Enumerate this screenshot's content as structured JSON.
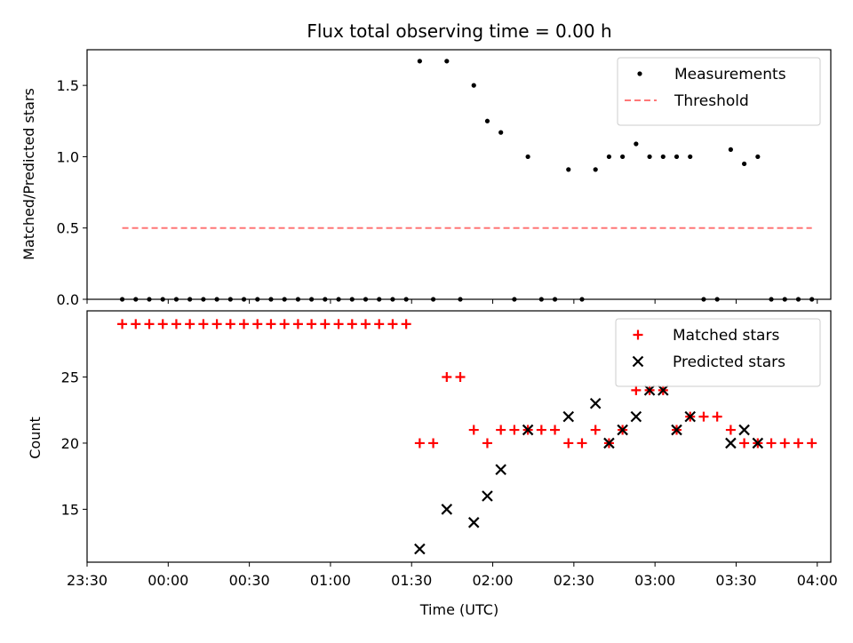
{
  "chart_data": [
    {
      "type": "scatter",
      "title": "Flux total observing time = 0.00 h",
      "ylabel": "Matched/Predicted stars",
      "xlabel": "",
      "xlim": [
        "23:30",
        "04:05"
      ],
      "ylim": [
        0,
        1.75
      ],
      "xticks": [
        "23:30",
        "00:00",
        "00:30",
        "01:00",
        "01:30",
        "02:00",
        "02:30",
        "03:00",
        "03:30",
        "04:00"
      ],
      "xtick_labels_visible": false,
      "yticks": [
        0.0,
        0.5,
        1.0,
        1.5
      ],
      "ytick_labels": [
        "0.0",
        "0.5",
        "1.0",
        "1.5"
      ],
      "legend": {
        "placement": "upper right",
        "entries": [
          "Measurements",
          "Threshold"
        ]
      },
      "series": [
        {
          "name": "Measurements",
          "marker": "dot",
          "color": "#000000",
          "points": [
            [
              "23:43",
              0
            ],
            [
              "23:48",
              0
            ],
            [
              "23:53",
              0
            ],
            [
              "23:58",
              0
            ],
            [
              "00:03",
              0
            ],
            [
              "00:08",
              0
            ],
            [
              "00:13",
              0
            ],
            [
              "00:18",
              0
            ],
            [
              "00:23",
              0
            ],
            [
              "00:28",
              0
            ],
            [
              "00:33",
              0
            ],
            [
              "00:38",
              0
            ],
            [
              "00:43",
              0
            ],
            [
              "00:48",
              0
            ],
            [
              "00:53",
              0
            ],
            [
              "00:58",
              0
            ],
            [
              "01:03",
              0
            ],
            [
              "01:08",
              0
            ],
            [
              "01:13",
              0
            ],
            [
              "01:18",
              0
            ],
            [
              "01:23",
              0
            ],
            [
              "01:28",
              0
            ],
            [
              "01:33",
              1.67
            ],
            [
              "01:38",
              0
            ],
            [
              "01:43",
              1.67
            ],
            [
              "01:48",
              0
            ],
            [
              "01:53",
              1.5
            ],
            [
              "01:58",
              1.25
            ],
            [
              "02:03",
              1.17
            ],
            [
              "02:08",
              0
            ],
            [
              "02:13",
              1.0
            ],
            [
              "02:18",
              0
            ],
            [
              "02:23",
              0
            ],
            [
              "02:28",
              0.91
            ],
            [
              "02:33",
              0
            ],
            [
              "02:38",
              0.91
            ],
            [
              "02:43",
              1.0
            ],
            [
              "02:48",
              1.0
            ],
            [
              "02:53",
              1.09
            ],
            [
              "02:58",
              1.0
            ],
            [
              "03:03",
              1.0
            ],
            [
              "03:08",
              1.0
            ],
            [
              "03:13",
              1.0
            ],
            [
              "03:18",
              0
            ],
            [
              "03:23",
              0
            ],
            [
              "03:28",
              1.05
            ],
            [
              "03:33",
              0.95
            ],
            [
              "03:38",
              1.0
            ],
            [
              "03:43",
              0
            ],
            [
              "03:48",
              0
            ],
            [
              "03:53",
              0
            ],
            [
              "03:58",
              0
            ]
          ]
        },
        {
          "name": "Threshold",
          "style": "dashed-line",
          "color": "#ff7777",
          "points": [
            [
              "23:43",
              0.5
            ],
            [
              "03:58",
              0.5
            ]
          ]
        }
      ]
    },
    {
      "type": "scatter",
      "title": "",
      "ylabel": "Count",
      "xlabel": "Time (UTC)",
      "xlim": [
        "23:30",
        "04:05"
      ],
      "ylim": [
        11,
        30
      ],
      "xticks": [
        "23:30",
        "00:00",
        "00:30",
        "01:00",
        "01:30",
        "02:00",
        "02:30",
        "03:00",
        "03:30",
        "04:00"
      ],
      "yticks": [
        15,
        20,
        25
      ],
      "legend": {
        "placement": "upper right",
        "entries": [
          "Matched stars",
          "Predicted stars"
        ]
      },
      "series": [
        {
          "name": "Matched stars",
          "marker": "plus",
          "color": "#ff0000",
          "points": [
            [
              "23:43",
              29
            ],
            [
              "23:48",
              29
            ],
            [
              "23:53",
              29
            ],
            [
              "23:58",
              29
            ],
            [
              "00:03",
              29
            ],
            [
              "00:08",
              29
            ],
            [
              "00:13",
              29
            ],
            [
              "00:18",
              29
            ],
            [
              "00:23",
              29
            ],
            [
              "00:28",
              29
            ],
            [
              "00:33",
              29
            ],
            [
              "00:38",
              29
            ],
            [
              "00:43",
              29
            ],
            [
              "00:48",
              29
            ],
            [
              "00:53",
              29
            ],
            [
              "00:58",
              29
            ],
            [
              "01:03",
              29
            ],
            [
              "01:08",
              29
            ],
            [
              "01:13",
              29
            ],
            [
              "01:18",
              29
            ],
            [
              "01:23",
              29
            ],
            [
              "01:28",
              29
            ],
            [
              "01:33",
              20
            ],
            [
              "01:38",
              20
            ],
            [
              "01:43",
              25
            ],
            [
              "01:48",
              25
            ],
            [
              "01:53",
              21
            ],
            [
              "01:58",
              20
            ],
            [
              "02:03",
              21
            ],
            [
              "02:08",
              21
            ],
            [
              "02:13",
              21
            ],
            [
              "02:18",
              21
            ],
            [
              "02:23",
              21
            ],
            [
              "02:28",
              20
            ],
            [
              "02:33",
              20
            ],
            [
              "02:38",
              21
            ],
            [
              "02:43",
              20
            ],
            [
              "02:48",
              21
            ],
            [
              "02:53",
              24
            ],
            [
              "02:58",
              24
            ],
            [
              "03:03",
              24
            ],
            [
              "03:08",
              21
            ],
            [
              "03:13",
              22
            ],
            [
              "03:18",
              22
            ],
            [
              "03:23",
              22
            ],
            [
              "03:28",
              21
            ],
            [
              "03:33",
              20
            ],
            [
              "03:38",
              20
            ],
            [
              "03:43",
              20
            ],
            [
              "03:48",
              20
            ],
            [
              "03:53",
              20
            ],
            [
              "03:58",
              20
            ]
          ]
        },
        {
          "name": "Predicted stars",
          "marker": "x",
          "color": "#000000",
          "points": [
            [
              "01:33",
              12
            ],
            [
              "01:43",
              15
            ],
            [
              "01:53",
              14
            ],
            [
              "01:58",
              16
            ],
            [
              "02:03",
              18
            ],
            [
              "02:13",
              21
            ],
            [
              "02:28",
              22
            ],
            [
              "02:38",
              23
            ],
            [
              "02:43",
              20
            ],
            [
              "02:48",
              21
            ],
            [
              "02:53",
              22
            ],
            [
              "02:58",
              24
            ],
            [
              "03:03",
              24
            ],
            [
              "03:08",
              21
            ],
            [
              "03:13",
              22
            ],
            [
              "03:28",
              20
            ],
            [
              "03:33",
              21
            ],
            [
              "03:38",
              20
            ]
          ]
        }
      ]
    }
  ]
}
